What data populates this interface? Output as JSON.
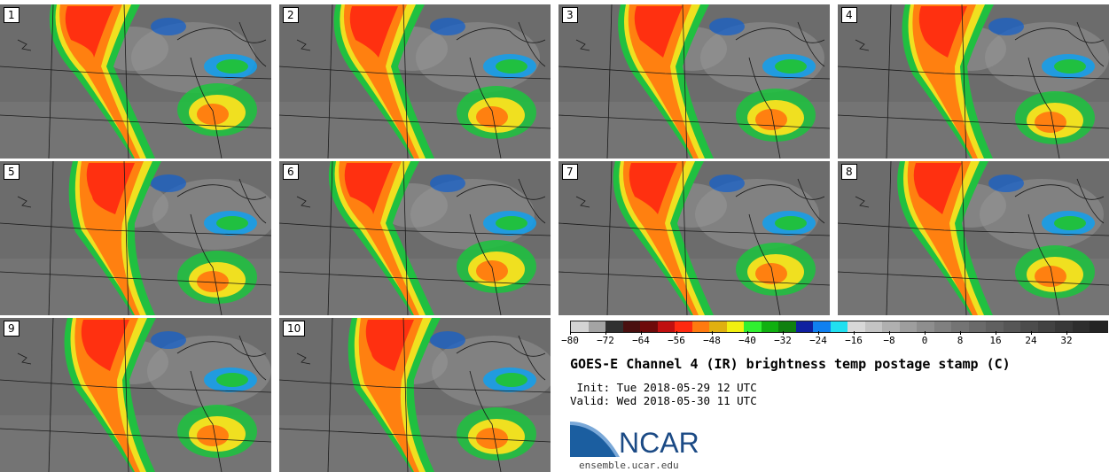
{
  "panels": [
    "1",
    "2",
    "3",
    "4",
    "5",
    "6",
    "7",
    "8",
    "9",
    "10"
  ],
  "colorbar": {
    "colors": [
      "#d4d4d4",
      "#a4a4a4",
      "#303030",
      "#4a1010",
      "#6e0a0a",
      "#c01010",
      "#ff2a10",
      "#ff7a10",
      "#e0b010",
      "#f2f010",
      "#30f030",
      "#10b010",
      "#108010",
      "#1020a0",
      "#1080f0",
      "#20e0f0",
      "#d8d8d8",
      "#c4c4c4",
      "#b0b0b0",
      "#9e9e9e",
      "#8e8e8e",
      "#808080",
      "#747474",
      "#6a6a6a",
      "#606060",
      "#565656",
      "#4c4c4c",
      "#424242",
      "#383838",
      "#2e2e2e",
      "#242424"
    ],
    "tick_labels": [
      "−80",
      "−72",
      "−64",
      "−56",
      "−48",
      "−40",
      "−32",
      "−24",
      "−16",
      "−8",
      "0",
      "8",
      "16",
      "24",
      "32"
    ]
  },
  "title": "GOES-E Channel 4 (IR) brightness temp postage stamp (C)",
  "init": " Init: Tue 2018-05-29 12 UTC",
  "valid": "Valid: Wed 2018-05-30 11 UTC",
  "logo": {
    "name": "NCAR"
  },
  "url": "ensemble.ucar.edu"
}
